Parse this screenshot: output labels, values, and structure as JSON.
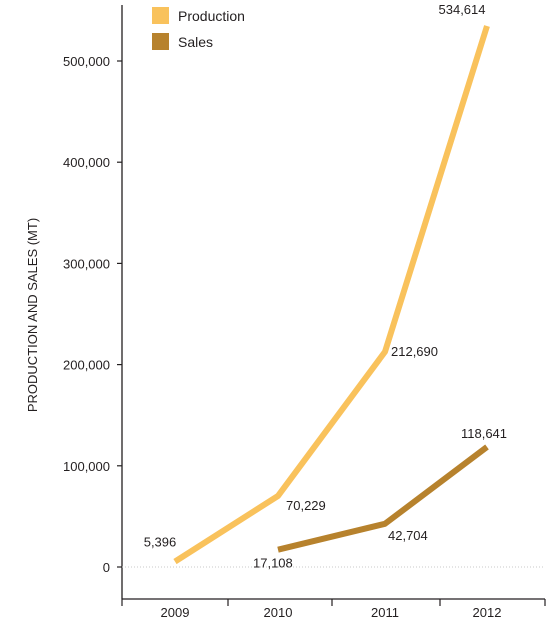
{
  "chart_data": {
    "type": "line",
    "title": "",
    "xlabel": "",
    "ylabel": "PRODUCTION AND SALES (MT)",
    "ylim": [
      0,
      500000
    ],
    "yticks": [
      0,
      100000,
      200000,
      300000,
      400000,
      500000
    ],
    "ytick_labels": [
      "0",
      "100,000",
      "200,000",
      "300,000",
      "400,000",
      "500,000"
    ],
    "categories": [
      "2009",
      "2010",
      "2011",
      "2012"
    ],
    "grid": false,
    "legend_position": "top-left",
    "series": [
      {
        "name": "Production",
        "color": "#f9c25c",
        "x": [
          "2009",
          "2010",
          "2011",
          "2012"
        ],
        "values": [
          5396,
          70229,
          212690,
          534614
        ],
        "labels": [
          "5,396",
          "70,229",
          "212,690",
          "534,614"
        ]
      },
      {
        "name": "Sales",
        "color": "#b7822d",
        "x": [
          "2010",
          "2011",
          "2012"
        ],
        "values": [
          17108,
          42704,
          118641
        ],
        "labels": [
          "17,108",
          "42,704",
          "118,641"
        ]
      }
    ]
  }
}
